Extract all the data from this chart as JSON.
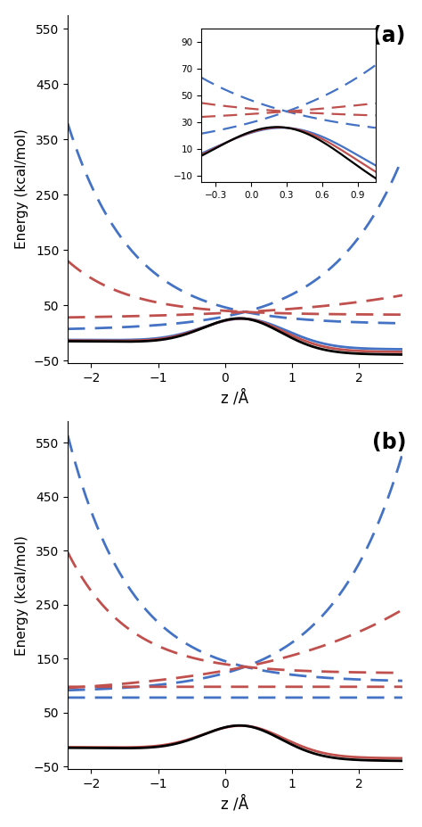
{
  "panel_a": {
    "label": "(a)",
    "xlim": [
      -2.35,
      2.65
    ],
    "ylim": [
      -55,
      575
    ],
    "yticks": [
      -50,
      50,
      150,
      250,
      350,
      450,
      550
    ],
    "xticks": [
      -2,
      -1,
      0,
      1,
      2
    ],
    "xlabel": "z /Å",
    "ylabel": "Energy (kcal/mol)"
  },
  "panel_b": {
    "label": "(b)",
    "xlim": [
      -2.35,
      2.65
    ],
    "ylim": [
      -55,
      590
    ],
    "yticks": [
      -50,
      50,
      150,
      250,
      350,
      450,
      550
    ],
    "xticks": [
      -2,
      -1,
      0,
      1,
      2
    ],
    "xlabel": "z /Å",
    "ylabel": "Energy (kcal/mol)"
  },
  "inset": {
    "xlim": [
      -0.42,
      1.05
    ],
    "ylim": [
      -15,
      100
    ],
    "xticks": [
      -0.3,
      0,
      0.3,
      0.6,
      0.9
    ],
    "yticks": [
      -10,
      10,
      30,
      50,
      70,
      90
    ]
  },
  "blue_color": "#4472C4",
  "red_color": "#C0504D",
  "black_color": "#000000"
}
